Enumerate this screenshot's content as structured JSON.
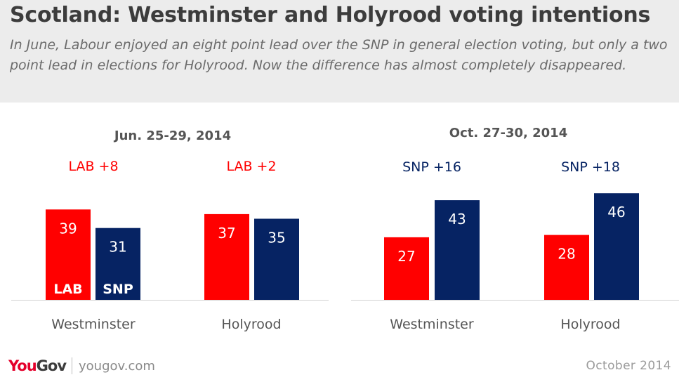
{
  "title": "Scotland: Westminster and Holyrood voting intentions",
  "subtitle": "In June, Labour enjoyed an eight point lead over the SNP in general election voting, but only a two point lead in elections for Holyrood. Now the difference has almost completely disappeared.",
  "footer": {
    "logo_you": "You",
    "logo_gov": "Gov",
    "site": "yougov.com",
    "date": "October 2014"
  },
  "colors": {
    "LAB": "#ff0000",
    "SNP": "#062363",
    "axis": "#d3d3d3",
    "panel_title": "#555555",
    "category_label": "#555555"
  },
  "chart_data": [
    {
      "type": "bar",
      "title": "Jun. 25-29, 2014",
      "categories": [
        "Westminster",
        "Holyrood"
      ],
      "series": [
        {
          "name": "LAB",
          "values": [
            39,
            37
          ]
        },
        {
          "name": "SNP",
          "values": [
            31,
            35
          ]
        }
      ],
      "leads": [
        {
          "text": "LAB +8",
          "party": "LAB"
        },
        {
          "text": "LAB +2",
          "party": "LAB"
        }
      ],
      "series_labels_in_bars": true,
      "ylim": [
        0,
        50
      ],
      "grid": false
    },
    {
      "type": "bar",
      "title": "Oct. 27-30, 2014",
      "categories": [
        "Westminster",
        "Holyrood"
      ],
      "series": [
        {
          "name": "LAB",
          "values": [
            27,
            28
          ]
        },
        {
          "name": "SNP",
          "values": [
            43,
            46
          ]
        }
      ],
      "leads": [
        {
          "text": "SNP +16",
          "party": "SNP"
        },
        {
          "text": "SNP +18",
          "party": "SNP"
        }
      ],
      "series_labels_in_bars": false,
      "ylim": [
        0,
        50
      ],
      "grid": false
    }
  ]
}
